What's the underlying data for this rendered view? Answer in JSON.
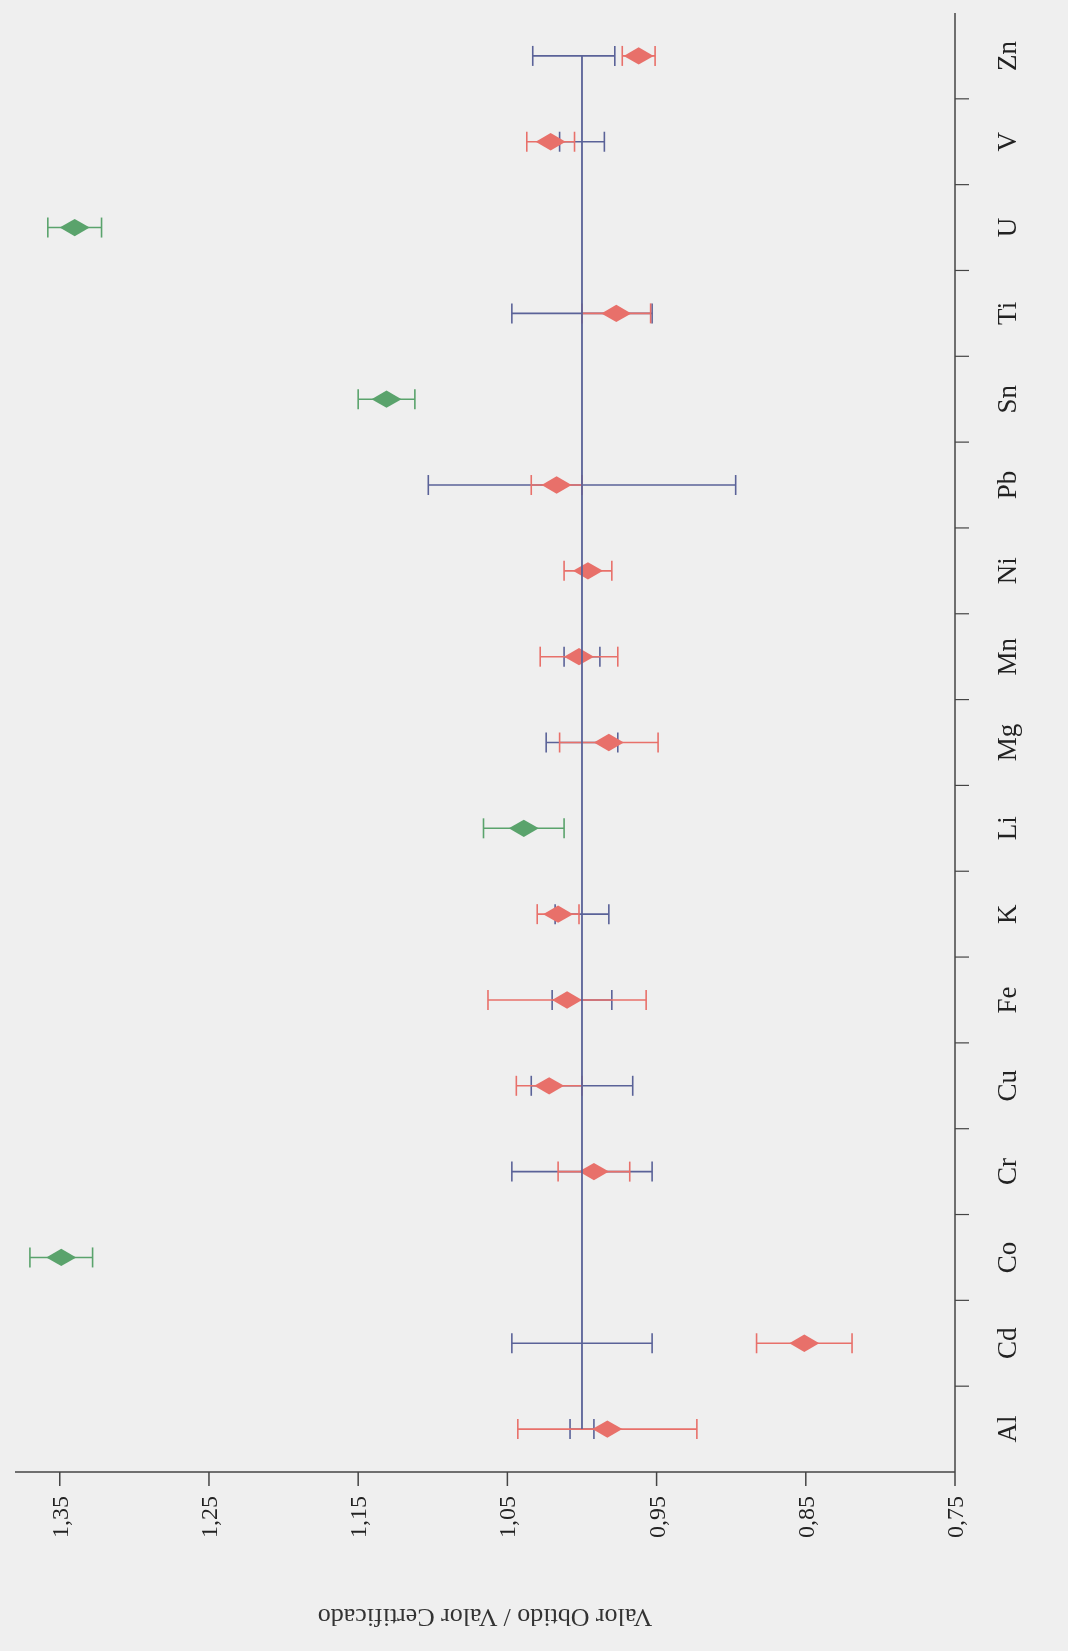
{
  "chart_data": {
    "type": "scatter",
    "orientation": "horizontal",
    "xlabel": "Valor Obtido / Valor Certificado",
    "categories": [
      "Zn",
      "V",
      "U",
      "Ti",
      "Sn",
      "Pb",
      "Ni",
      "Mn",
      "Mg",
      "Li",
      "K",
      "Fe",
      "Cu",
      "Cr",
      "Co",
      "Cd",
      "Al"
    ],
    "xlim": [
      1.38,
      0.75
    ],
    "xticks": [
      {
        "value": 1.35,
        "label": "1,35"
      },
      {
        "value": 1.25,
        "label": "1,25"
      },
      {
        "value": 1.15,
        "label": "1,15"
      },
      {
        "value": 1.05,
        "label": "1,05"
      },
      {
        "value": 0.95,
        "label": "0,95"
      },
      {
        "value": 0.85,
        "label": "0,85"
      },
      {
        "value": 0.75,
        "label": "0,75"
      }
    ],
    "grid": false,
    "series": [
      {
        "type": "line",
        "marker": "none",
        "color": "#5a6298",
        "values": [
          1,
          1,
          1,
          1,
          1,
          1,
          1,
          1,
          1,
          1,
          1,
          1,
          1,
          1,
          1,
          1,
          1
        ],
        "errors": [
          [
            0.978,
            1.033
          ],
          0.015,
          null,
          0.047,
          null,
          0.103,
          null,
          0.012,
          0.024,
          null,
          0.018,
          0.02,
          0.034,
          0.047,
          null,
          0.047,
          0.008
        ]
      },
      {
        "marker": "diamond",
        "color": "#e8706a",
        "values": [
          0.962,
          1.021,
          null,
          0.977,
          null,
          1.017,
          0.996,
          1.002,
          0.982,
          null,
          1.016,
          1.01,
          1.022,
          0.992,
          null,
          0.851,
          0.983
        ],
        "errors": [
          0.011,
          0.016,
          null,
          0.023,
          null,
          0.017,
          0.016,
          0.026,
          0.033,
          null,
          0.014,
          0.053,
          0.022,
          0.024,
          null,
          0.032,
          0.06
        ]
      },
      {
        "marker": "diamond",
        "color": "#5aa36c",
        "values": [
          null,
          null,
          1.34,
          null,
          1.131,
          null,
          null,
          null,
          null,
          1.039,
          null,
          null,
          null,
          null,
          1.349,
          null,
          null
        ],
        "errors": [
          null,
          null,
          0.018,
          null,
          0.019,
          null,
          null,
          null,
          null,
          0.027,
          null,
          null,
          null,
          null,
          0.021,
          null,
          null
        ]
      }
    ]
  }
}
